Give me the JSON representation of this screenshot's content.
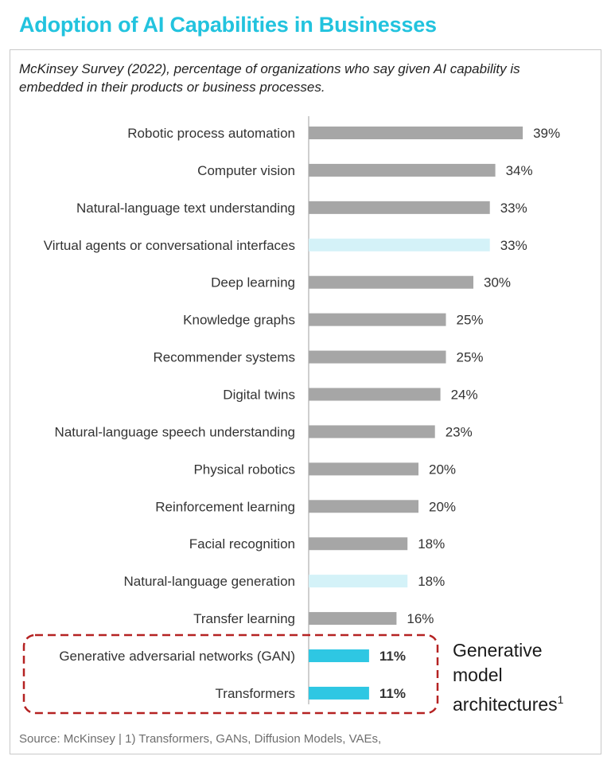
{
  "colors": {
    "title": "#22c3de",
    "bar_default": "#a6a6a6",
    "bar_light_blue": "#d4f2f8",
    "bar_highlight": "#2ec7e3",
    "dashed_box": "#b52222",
    "axis_line": "#bfbfbf"
  },
  "chart_data": {
    "type": "bar",
    "orientation": "horizontal",
    "title": "Adoption of AI Capabilities in Businesses",
    "subtitle": "McKinsey Survey (2022), percentage of organizations who say given AI capability is embedded in their products or business processes.",
    "categories": [
      "Robotic process automation",
      "Computer vision",
      "Natural-language text understanding",
      "Virtual agents or conversational interfaces",
      "Deep learning",
      "Knowledge graphs",
      "Recommender systems",
      "Digital twins",
      "Natural-language speech understanding",
      "Physical robotics",
      "Reinforcement learning",
      "Facial recognition",
      "Natural-language generation",
      "Transfer learning",
      "Generative adversarial networks (GAN)",
      "Transformers"
    ],
    "values": [
      39,
      34,
      33,
      33,
      30,
      25,
      25,
      24,
      23,
      20,
      20,
      18,
      18,
      16,
      11,
      11
    ],
    "value_labels": [
      "39%",
      "34%",
      "33%",
      "33%",
      "30%",
      "25%",
      "25%",
      "24%",
      "23%",
      "20%",
      "20%",
      "18%",
      "18%",
      "16%",
      "11%",
      "11%"
    ],
    "bar_styles": [
      "default",
      "default",
      "default",
      "light_blue",
      "default",
      "default",
      "default",
      "default",
      "default",
      "default",
      "default",
      "default",
      "light_blue",
      "default",
      "highlight",
      "highlight"
    ],
    "xlim": [
      0,
      40
    ],
    "unit": "%",
    "annotation": {
      "text_lines": [
        "Generative",
        "model",
        "architectures"
      ],
      "superscript": "1",
      "encloses": [
        "Generative adversarial networks (GAN)",
        "Transformers"
      ]
    },
    "source": "Source: McKinsey | 1) Transformers, GANs, Diffusion Models, VAEs,"
  }
}
